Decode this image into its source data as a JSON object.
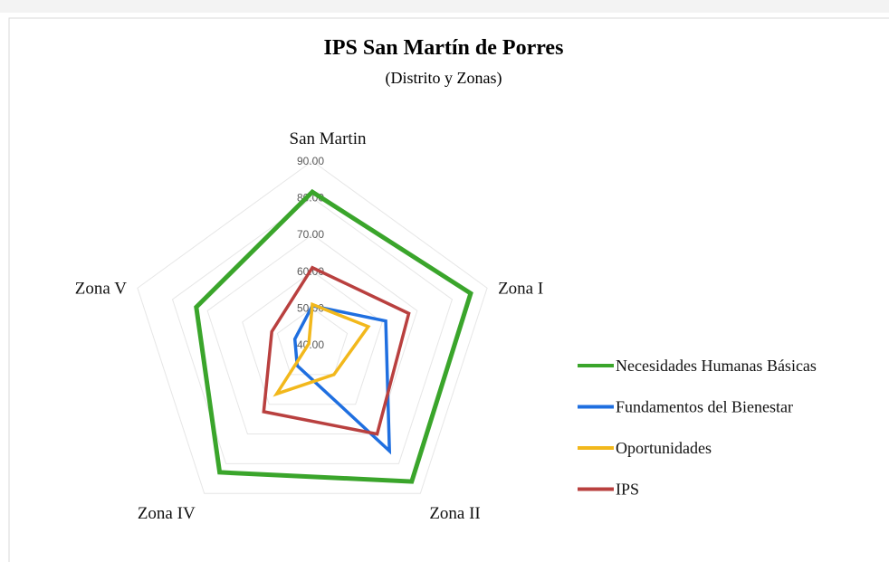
{
  "chart_data": {
    "type": "radar",
    "title": "IPS San Martín de Porres",
    "subtitle": "(Distrito y Zonas)",
    "categories": [
      "San Martin",
      "Zona I",
      "Zona II",
      "Zona IV",
      "Zona V"
    ],
    "ylim": [
      40,
      90
    ],
    "yticks": [
      {
        "value": 40,
        "label": "40.00"
      },
      {
        "value": 50,
        "label": "50.00"
      },
      {
        "value": 60,
        "label": "60.00"
      },
      {
        "value": 70,
        "label": "70.00"
      },
      {
        "value": 80,
        "label": "80.00"
      },
      {
        "value": 90,
        "label": "90.00"
      }
    ],
    "grid": true,
    "legend": "right",
    "series": [
      {
        "name": "Necesidades Humanas Básicas",
        "color": "#3aa52b",
        "values": [
          81.6,
          85.3,
          86,
          82.9,
          73.2
        ]
      },
      {
        "name": "Fundamentos del Bienestar",
        "color": "#1f6fe0",
        "values": [
          50.6,
          61,
          75.7,
          47,
          45
        ]
      },
      {
        "name": "Oportunidades",
        "color": "#f2b81c",
        "values": [
          51,
          56,
          50,
          56.5,
          41
        ]
      },
      {
        "name": "IPS",
        "color": "#b9403f",
        "values": [
          61,
          67.6,
          70,
          62.5,
          51.6
        ]
      }
    ]
  }
}
